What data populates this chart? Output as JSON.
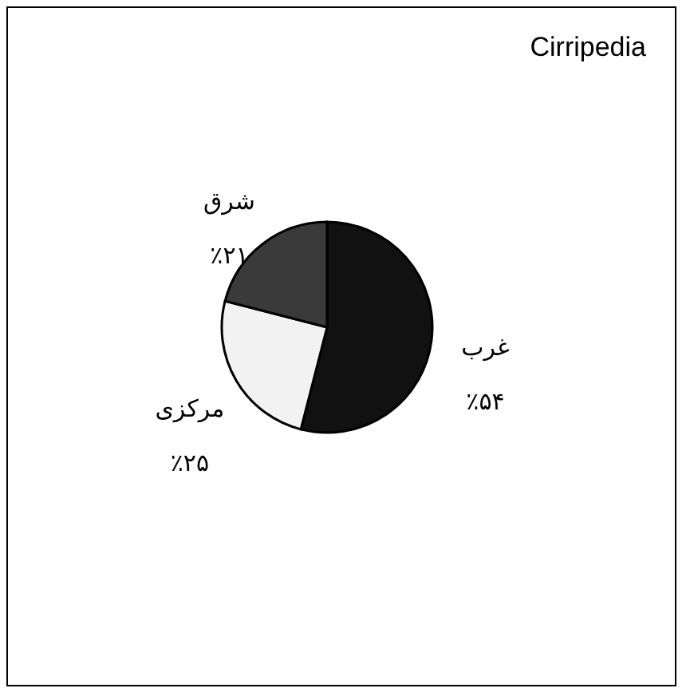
{
  "chart_data": {
    "type": "pie",
    "title": "Cirripedia",
    "categories": [
      "غرب",
      "مرکزی",
      "شرق"
    ],
    "values": [
      54,
      25,
      21
    ],
    "value_labels": [
      "٪۵۴",
      "٪۲۵",
      "٪۲۱"
    ],
    "colors": [
      "#111111",
      "#f2f2f2",
      "#3a3a3a"
    ],
    "legend": false
  }
}
